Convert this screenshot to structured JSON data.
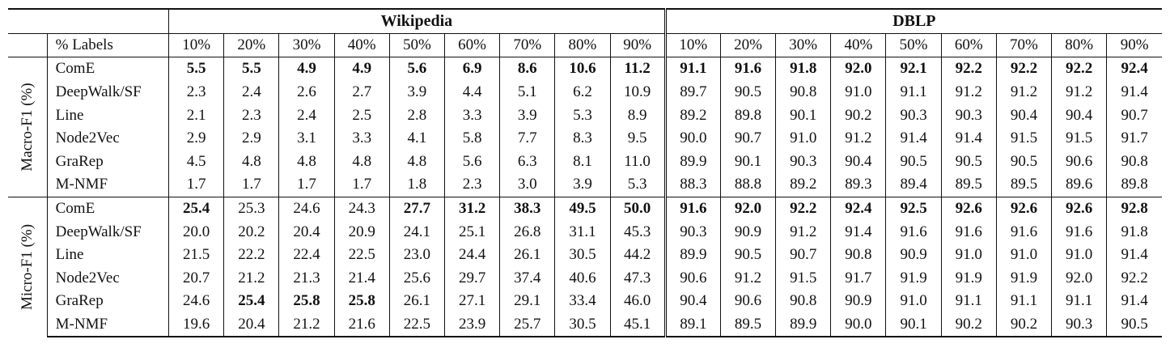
{
  "datasets": [
    "Wikipedia",
    "DBLP"
  ],
  "label_header": "% Labels",
  "label_pcts": [
    "10%",
    "20%",
    "30%",
    "40%",
    "50%",
    "60%",
    "70%",
    "80%",
    "90%"
  ],
  "groups": [
    {
      "name": "Macro-F1 (%)",
      "rows": [
        {
          "method": "ComE",
          "wiki": [
            "5.5",
            "5.5",
            "4.9",
            "4.9",
            "5.6",
            "6.9",
            "8.6",
            "10.6",
            "11.2"
          ],
          "dblp": [
            "91.1",
            "91.6",
            "91.8",
            "92.0",
            "92.1",
            "92.2",
            "92.2",
            "92.2",
            "92.4"
          ],
          "wiki_bold": [
            true,
            true,
            true,
            true,
            true,
            true,
            true,
            true,
            true
          ],
          "dblp_bold": [
            true,
            true,
            true,
            true,
            true,
            true,
            true,
            true,
            true
          ]
        },
        {
          "method": "DeepWalk/SF",
          "wiki": [
            "2.3",
            "2.4",
            "2.6",
            "2.7",
            "3.9",
            "4.4",
            "5.1",
            "6.2",
            "10.9"
          ],
          "dblp": [
            "89.7",
            "90.5",
            "90.8",
            "91.0",
            "91.1",
            "91.2",
            "91.2",
            "91.2",
            "91.4"
          ]
        },
        {
          "method": "Line",
          "wiki": [
            "2.1",
            "2.3",
            "2.4",
            "2.5",
            "2.8",
            "3.3",
            "3.9",
            "5.3",
            "8.9"
          ],
          "dblp": [
            "89.2",
            "89.8",
            "90.1",
            "90.2",
            "90.3",
            "90.3",
            "90.4",
            "90.4",
            "90.7"
          ]
        },
        {
          "method": "Node2Vec",
          "wiki": [
            "2.9",
            "2.9",
            "3.1",
            "3.3",
            "4.1",
            "5.8",
            "7.7",
            "8.3",
            "9.5"
          ],
          "dblp": [
            "90.0",
            "90.7",
            "91.0",
            "91.2",
            "91.4",
            "91.4",
            "91.5",
            "91.5",
            "91.7"
          ]
        },
        {
          "method": "GraRep",
          "wiki": [
            "4.5",
            "4.8",
            "4.8",
            "4.8",
            "4.8",
            "5.6",
            "6.3",
            "8.1",
            "11.0"
          ],
          "dblp": [
            "89.9",
            "90.1",
            "90.3",
            "90.4",
            "90.5",
            "90.5",
            "90.5",
            "90.6",
            "90.8"
          ]
        },
        {
          "method": "M-NMF",
          "wiki": [
            "1.7",
            "1.7",
            "1.7",
            "1.7",
            "1.8",
            "2.3",
            "3.0",
            "3.9",
            "5.3"
          ],
          "dblp": [
            "88.3",
            "88.8",
            "89.2",
            "89.3",
            "89.4",
            "89.5",
            "89.5",
            "89.6",
            "89.8"
          ]
        }
      ]
    },
    {
      "name": "Micro-F1 (%)",
      "rows": [
        {
          "method": "ComE",
          "wiki": [
            "25.4",
            "25.3",
            "24.6",
            "24.3",
            "27.7",
            "31.2",
            "38.3",
            "49.5",
            "50.0"
          ],
          "dblp": [
            "91.6",
            "92.0",
            "92.2",
            "92.4",
            "92.5",
            "92.6",
            "92.6",
            "92.6",
            "92.8"
          ],
          "wiki_bold": [
            true,
            false,
            false,
            false,
            true,
            true,
            true,
            true,
            true
          ],
          "dblp_bold": [
            true,
            true,
            true,
            true,
            true,
            true,
            true,
            true,
            true
          ]
        },
        {
          "method": "DeepWalk/SF",
          "wiki": [
            "20.0",
            "20.2",
            "20.4",
            "20.9",
            "24.1",
            "25.1",
            "26.8",
            "31.1",
            "45.3"
          ],
          "dblp": [
            "90.3",
            "90.9",
            "91.2",
            "91.4",
            "91.6",
            "91.6",
            "91.6",
            "91.6",
            "91.8"
          ]
        },
        {
          "method": "Line",
          "wiki": [
            "21.5",
            "22.2",
            "22.4",
            "22.5",
            "23.0",
            "24.4",
            "26.1",
            "30.5",
            "44.2"
          ],
          "dblp": [
            "89.9",
            "90.5",
            "90.7",
            "90.8",
            "90.9",
            "91.0",
            "91.0",
            "91.0",
            "91.4"
          ]
        },
        {
          "method": "Node2Vec",
          "wiki": [
            "20.7",
            "21.2",
            "21.3",
            "21.4",
            "25.6",
            "29.7",
            "37.4",
            "40.6",
            "47.3"
          ],
          "dblp": [
            "90.6",
            "91.2",
            "91.5",
            "91.7",
            "91.9",
            "91.9",
            "91.9",
            "92.0",
            "92.2"
          ]
        },
        {
          "method": "GraRep",
          "wiki": [
            "24.6",
            "25.4",
            "25.8",
            "25.8",
            "26.1",
            "27.1",
            "29.1",
            "33.4",
            "46.0"
          ],
          "dblp": [
            "90.4",
            "90.6",
            "90.8",
            "90.9",
            "91.0",
            "91.1",
            "91.1",
            "91.1",
            "91.4"
          ],
          "wiki_bold": [
            false,
            true,
            true,
            true,
            false,
            false,
            false,
            false,
            false
          ]
        },
        {
          "method": "M-NMF",
          "wiki": [
            "19.6",
            "20.4",
            "21.2",
            "21.6",
            "22.5",
            "23.9",
            "25.7",
            "30.5",
            "45.1"
          ],
          "dblp": [
            "89.1",
            "89.5",
            "89.9",
            "90.0",
            "90.1",
            "90.2",
            "90.2",
            "90.3",
            "90.5"
          ]
        }
      ]
    }
  ]
}
